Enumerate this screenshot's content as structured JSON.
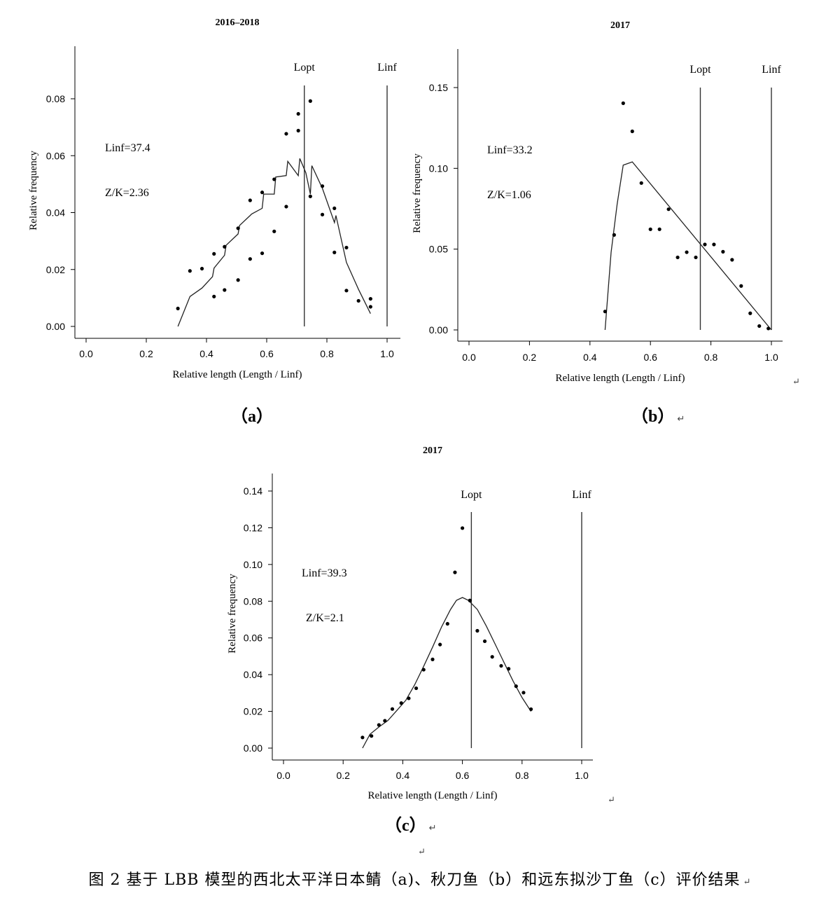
{
  "caption": "图 2 基于 LBB 模型的西北太平洋日本鲭（a)、秋刀鱼（b）和远东拟沙丁鱼（c）评价结果",
  "para_mark": "↵",
  "chart_data": [
    {
      "type": "scatter",
      "panel_label": "（a）",
      "title": "2016–2018",
      "xlabel": "Relative length (Length / Linf)",
      "ylabel": "Relative frequency",
      "xlim": [
        0.0,
        1.0
      ],
      "ylim": [
        0.0,
        0.1
      ],
      "xticks": [
        "0.0",
        "0.2",
        "0.4",
        "0.6",
        "0.8",
        "1.0"
      ],
      "yticks": [
        "0.00",
        "0.02",
        "0.04",
        "0.06",
        "0.08"
      ],
      "annotations": [
        "Linf=37.4",
        "Z/K=2.36"
      ],
      "vlines": [
        {
          "label": "Lopt",
          "x": 0.725
        },
        {
          "label": "Linf",
          "x": 1.0
        }
      ],
      "points": [
        [
          0.305,
          0.0063
        ],
        [
          0.345,
          0.0195
        ],
        [
          0.385,
          0.0203
        ],
        [
          0.425,
          0.0105
        ],
        [
          0.425,
          0.0255
        ],
        [
          0.46,
          0.0128
        ],
        [
          0.46,
          0.028
        ],
        [
          0.505,
          0.0163
        ],
        [
          0.505,
          0.0345
        ],
        [
          0.545,
          0.0237
        ],
        [
          0.545,
          0.0443
        ],
        [
          0.585,
          0.0257
        ],
        [
          0.585,
          0.0471
        ],
        [
          0.625,
          0.0334
        ],
        [
          0.625,
          0.0517
        ],
        [
          0.665,
          0.0421
        ],
        [
          0.665,
          0.0677
        ],
        [
          0.705,
          0.0688
        ],
        [
          0.705,
          0.0747
        ],
        [
          0.745,
          0.0457
        ],
        [
          0.745,
          0.0792
        ],
        [
          0.785,
          0.0393
        ],
        [
          0.785,
          0.0493
        ],
        [
          0.825,
          0.026
        ],
        [
          0.825,
          0.0415
        ],
        [
          0.865,
          0.0126
        ],
        [
          0.865,
          0.0277
        ],
        [
          0.905,
          0.009
        ],
        [
          0.945,
          0.0069
        ],
        [
          0.945,
          0.0097
        ]
      ],
      "curve": [
        [
          0.305,
          0.0
        ],
        [
          0.345,
          0.0105
        ],
        [
          0.385,
          0.0135
        ],
        [
          0.42,
          0.0175
        ],
        [
          0.425,
          0.0205
        ],
        [
          0.46,
          0.025
        ],
        [
          0.465,
          0.0285
        ],
        [
          0.505,
          0.0325
        ],
        [
          0.51,
          0.0355
        ],
        [
          0.545,
          0.039
        ],
        [
          0.55,
          0.0395
        ],
        [
          0.585,
          0.0415
        ],
        [
          0.59,
          0.0465
        ],
        [
          0.625,
          0.0465
        ],
        [
          0.63,
          0.0525
        ],
        [
          0.665,
          0.053
        ],
        [
          0.67,
          0.058
        ],
        [
          0.705,
          0.053
        ],
        [
          0.71,
          0.059
        ],
        [
          0.73,
          0.054
        ],
        [
          0.745,
          0.0465
        ],
        [
          0.75,
          0.0565
        ],
        [
          0.785,
          0.0485
        ],
        [
          0.825,
          0.0365
        ],
        [
          0.83,
          0.039
        ],
        [
          0.865,
          0.0225
        ],
        [
          0.905,
          0.013
        ],
        [
          0.945,
          0.0045
        ]
      ]
    },
    {
      "type": "scatter",
      "panel_label": "（b）",
      "title": "2017",
      "xlabel": "Relative length (Length / Linf)",
      "ylabel": "Relative frequency",
      "xlim": [
        0.0,
        1.0
      ],
      "ylim": [
        0.0,
        0.17
      ],
      "xticks": [
        "0.0",
        "0.2",
        "0.4",
        "0.6",
        "0.8",
        "1.0"
      ],
      "yticks": [
        "0.00",
        "0.05",
        "0.10",
        "0.15"
      ],
      "annotations": [
        "Linf=33.2",
        "Z/K=1.06"
      ],
      "vlines": [
        {
          "label": "Lopt",
          "x": 0.765
        },
        {
          "label": "Linf",
          "x": 1.0
        }
      ],
      "points": [
        [
          0.45,
          0.0114
        ],
        [
          0.48,
          0.0588
        ],
        [
          0.51,
          0.1403
        ],
        [
          0.54,
          0.1229
        ],
        [
          0.57,
          0.0909
        ],
        [
          0.6,
          0.0623
        ],
        [
          0.63,
          0.0623
        ],
        [
          0.66,
          0.0747
        ],
        [
          0.69,
          0.0449
        ],
        [
          0.72,
          0.0481
        ],
        [
          0.75,
          0.0449
        ],
        [
          0.78,
          0.0529
        ],
        [
          0.81,
          0.0529
        ],
        [
          0.84,
          0.0484
        ],
        [
          0.87,
          0.0434
        ],
        [
          0.9,
          0.0272
        ],
        [
          0.93,
          0.0103
        ],
        [
          0.96,
          0.0024
        ],
        [
          0.99,
          0.0009
        ]
      ],
      "curve": [
        [
          0.45,
          0.0
        ],
        [
          0.47,
          0.048
        ],
        [
          0.49,
          0.078
        ],
        [
          0.51,
          0.102
        ],
        [
          0.54,
          0.104
        ],
        [
          1.0,
          0.0
        ]
      ]
    },
    {
      "type": "scatter",
      "panel_label": "（c）",
      "title": "2017",
      "xlabel": "Relative length (Length / Linf)",
      "ylabel": "Relative frequency",
      "xlim": [
        0.0,
        1.0
      ],
      "ylim": [
        0.0,
        0.15
      ],
      "xticks": [
        "0.0",
        "0.2",
        "0.4",
        "0.6",
        "0.8",
        "1.0"
      ],
      "yticks": [
        "0.00",
        "0.02",
        "0.04",
        "0.06",
        "0.08",
        "0.10",
        "0.12",
        "0.14"
      ],
      "annotations": [
        "Linf=39.3",
        "Z/K=2.1"
      ],
      "vlines": [
        {
          "label": "Lopt",
          "x": 0.63
        },
        {
          "label": "Linf",
          "x": 1.0
        }
      ],
      "points": [
        [
          0.265,
          0.0058
        ],
        [
          0.295,
          0.0066
        ],
        [
          0.32,
          0.0126
        ],
        [
          0.34,
          0.0149
        ],
        [
          0.365,
          0.0213
        ],
        [
          0.395,
          0.0245
        ],
        [
          0.42,
          0.0271
        ],
        [
          0.445,
          0.0326
        ],
        [
          0.47,
          0.0427
        ],
        [
          0.5,
          0.0483
        ],
        [
          0.525,
          0.0564
        ],
        [
          0.55,
          0.0677
        ],
        [
          0.575,
          0.0957
        ],
        [
          0.6,
          0.1198
        ],
        [
          0.625,
          0.0804
        ],
        [
          0.65,
          0.0639
        ],
        [
          0.675,
          0.0582
        ],
        [
          0.7,
          0.0497
        ],
        [
          0.73,
          0.0448
        ],
        [
          0.755,
          0.0432
        ],
        [
          0.78,
          0.0337
        ],
        [
          0.805,
          0.0302
        ],
        [
          0.83,
          0.0212
        ]
      ],
      "curve": [
        [
          0.265,
          0.0
        ],
        [
          0.29,
          0.0075
        ],
        [
          0.32,
          0.0115
        ],
        [
          0.35,
          0.015
        ],
        [
          0.38,
          0.0205
        ],
        [
          0.41,
          0.026
        ],
        [
          0.44,
          0.0345
        ],
        [
          0.47,
          0.0445
        ],
        [
          0.5,
          0.055
        ],
        [
          0.53,
          0.066
        ],
        [
          0.56,
          0.0755
        ],
        [
          0.58,
          0.0805
        ],
        [
          0.6,
          0.082
        ],
        [
          0.62,
          0.0805
        ],
        [
          0.65,
          0.0755
        ],
        [
          0.68,
          0.0665
        ],
        [
          0.71,
          0.0565
        ],
        [
          0.74,
          0.0465
        ],
        [
          0.77,
          0.0365
        ],
        [
          0.8,
          0.0275
        ],
        [
          0.83,
          0.02
        ]
      ]
    }
  ]
}
